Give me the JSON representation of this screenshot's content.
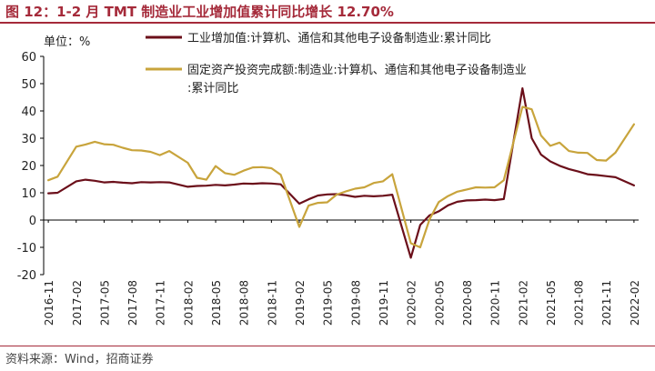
{
  "title": "图 12：1-2 月 TMT 制造业工业增加值累计同比增长 12.70%",
  "source": "资料来源：Wind，招商证券",
  "chart_data": {
    "type": "line",
    "unit_label": "单位：%",
    "ylim": [
      -20,
      60
    ],
    "yticks": [
      -20,
      -10,
      0,
      10,
      20,
      30,
      40,
      50,
      60
    ],
    "x_tick_labels": [
      "2016-11",
      "2017-02",
      "2017-05",
      "2017-08",
      "2017-11",
      "2018-02",
      "2018-05",
      "2018-08",
      "2018-11",
      "2019-02",
      "2019-05",
      "2019-08",
      "2019-11",
      "2020-02",
      "2020-05",
      "2020-08",
      "2020-11",
      "2021-02",
      "2021-05",
      "2021-08",
      "2021-11",
      "2022-02"
    ],
    "x": [
      "2016-11",
      "2016-12",
      "2017-01",
      "2017-02",
      "2017-03",
      "2017-04",
      "2017-05",
      "2017-06",
      "2017-07",
      "2017-08",
      "2017-09",
      "2017-10",
      "2017-11",
      "2017-12",
      "2018-01",
      "2018-02",
      "2018-03",
      "2018-04",
      "2018-05",
      "2018-06",
      "2018-07",
      "2018-08",
      "2018-09",
      "2018-10",
      "2018-11",
      "2018-12",
      "2019-01",
      "2019-02",
      "2019-03",
      "2019-04",
      "2019-05",
      "2019-06",
      "2019-07",
      "2019-08",
      "2019-09",
      "2019-10",
      "2019-11",
      "2019-12",
      "2020-01",
      "2020-02",
      "2020-03",
      "2020-04",
      "2020-05",
      "2020-06",
      "2020-07",
      "2020-08",
      "2020-09",
      "2020-10",
      "2020-11",
      "2020-12",
      "2021-01",
      "2021-02",
      "2021-03",
      "2021-04",
      "2021-05",
      "2021-06",
      "2021-07",
      "2021-08",
      "2021-09",
      "2021-10",
      "2021-11",
      "2021-12",
      "2022-01",
      "2022-02"
    ],
    "series": [
      {
        "name": "工业增加值:计算机、通信和其他电子设备制造业:累计同比",
        "color": "#6b0f1a",
        "values": [
          9.8,
          10.0,
          null,
          14.2,
          14.8,
          14.4,
          13.8,
          14.0,
          13.7,
          13.5,
          13.9,
          13.8,
          13.9,
          13.8,
          null,
          12.2,
          12.5,
          12.6,
          12.9,
          12.7,
          13.0,
          13.4,
          13.3,
          13.5,
          13.4,
          13.1,
          null,
          6.0,
          7.6,
          9.0,
          9.4,
          9.5,
          9.1,
          8.5,
          8.9,
          8.7,
          8.9,
          9.3,
          null,
          -13.8,
          -1.8,
          1.7,
          3.2,
          5.4,
          6.7,
          7.2,
          7.3,
          7.5,
          7.3,
          7.7,
          null,
          48.3,
          30.0,
          24.0,
          21.5,
          19.9,
          18.7,
          17.8,
          16.8,
          16.5,
          16.1,
          15.7,
          null,
          12.7
        ]
      },
      {
        "name": "固定资产投资完成额:制造业:计算机、通信和其他电子设备制造业:累计同比",
        "color": "#c8a43c",
        "values": [
          14.6,
          15.9,
          null,
          26.9,
          27.7,
          28.7,
          27.8,
          27.6,
          26.5,
          25.6,
          25.5,
          25.0,
          23.8,
          25.3,
          null,
          21.0,
          15.5,
          14.8,
          19.8,
          17.2,
          16.6,
          18.1,
          19.3,
          19.4,
          19.0,
          16.6,
          null,
          -2.5,
          5.3,
          6.3,
          6.5,
          9.3,
          10.5,
          11.5,
          12.0,
          13.6,
          14.2,
          16.8,
          null,
          -8.5,
          -10.0,
          0.2,
          6.6,
          8.8,
          10.4,
          11.2,
          12.0,
          11.9,
          12.0,
          14.6,
          null,
          41.5,
          40.6,
          31.0,
          27.2,
          28.4,
          25.3,
          24.7,
          24.6,
          22.0,
          21.8,
          24.7,
          null,
          35.1
        ]
      }
    ],
    "grid": false,
    "legend": "top"
  }
}
